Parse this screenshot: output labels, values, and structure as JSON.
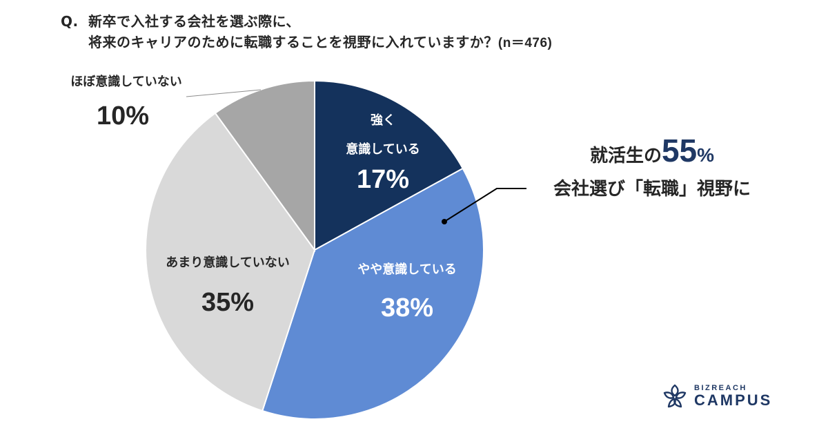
{
  "title": {
    "prefix": "Q.",
    "line1": "新卒で入社する会社を選ぶ際に、",
    "line2": "将来のキャリアのために転職することを視野に入れていますか？",
    "sample": "(n＝476)"
  },
  "slices": [
    {
      "label_line1": "強く",
      "label_line2": "意識している",
      "percent": "17%",
      "color": "#14325c"
    },
    {
      "label_line1": "やや意識している",
      "percent": "38%",
      "color": "#5f8bd4"
    },
    {
      "label_line1": "あまり意識していない",
      "percent": "35%",
      "color": "#d9d9d9"
    },
    {
      "label_line1": "ほぼ意識していない",
      "percent": "10%",
      "color": "#a6a6a6"
    }
  ],
  "callout": {
    "line1_prefix": "就活生の",
    "line1_number": "55",
    "line1_unit": "%",
    "line2": "会社選び「転職」視野に"
  },
  "logo": {
    "small": "BIZREACH",
    "big": "CAMPUS"
  },
  "chart_data": {
    "type": "pie",
    "title": "Q. 新卒で入社する会社を選ぶ際に、将来のキャリアのために転職することを視野に入れていますか？(n＝476)",
    "categories": [
      "強く意識している",
      "やや意識している",
      "あまり意識していない",
      "ほぼ意識していない"
    ],
    "values": [
      17,
      38,
      35,
      10
    ],
    "colors": [
      "#14325c",
      "#5f8bd4",
      "#d9d9d9",
      "#a6a6a6"
    ],
    "start_angle": "12 o'clock, clockwise",
    "n": 476,
    "annotations": [
      "就活生の55% 会社選び「転職」視野に"
    ],
    "legend": "none (inline labels)"
  }
}
